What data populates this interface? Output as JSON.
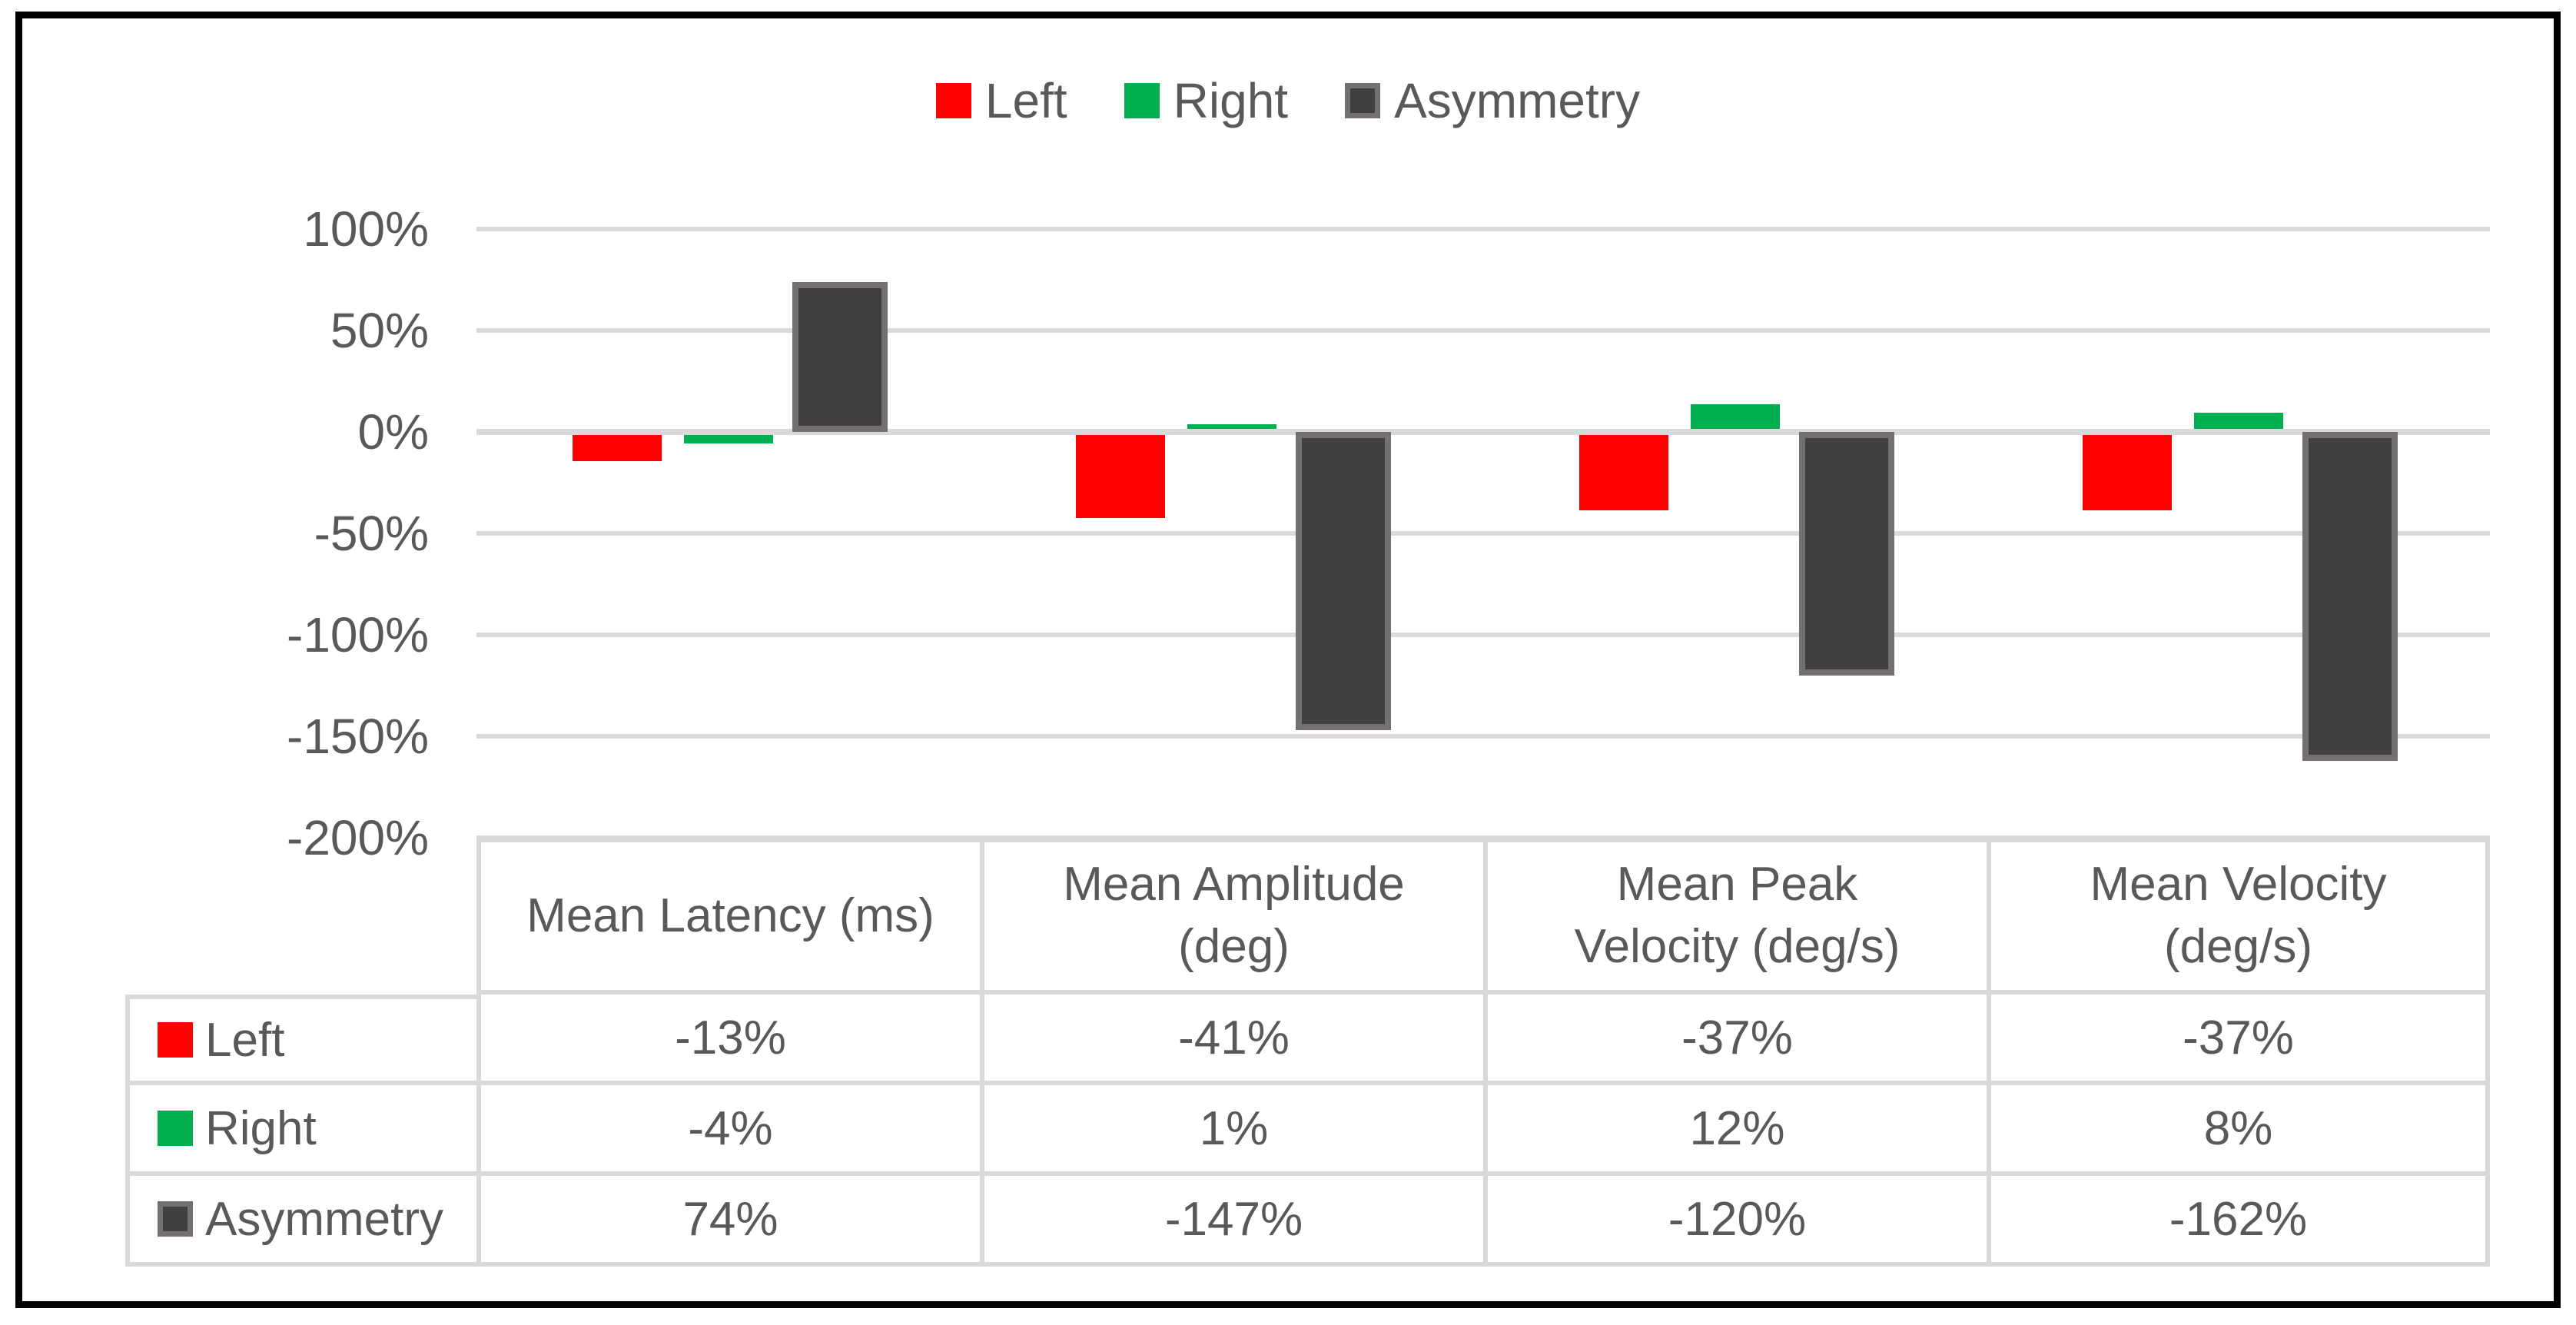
{
  "chart_data": {
    "type": "bar",
    "title": "",
    "categories": [
      "Mean Latency (ms)",
      "Mean Amplitude\n(deg)",
      "Mean Peak\nVelocity (deg/s)",
      "Mean Velocity\n(deg/s)"
    ],
    "series": [
      {
        "name": "Left",
        "color": "#FF0000",
        "values": [
          -13,
          -41,
          -37,
          -37
        ],
        "labels": [
          "-13%",
          "-41%",
          "-37%",
          "-37%"
        ]
      },
      {
        "name": "Right",
        "color": "#00B050",
        "values": [
          -4,
          1,
          12,
          8
        ],
        "labels": [
          "-4%",
          "1%",
          "12%",
          "8%"
        ]
      },
      {
        "name": "Asymmetry",
        "color": "#404040",
        "border_color": "#757070",
        "values": [
          74,
          -147,
          -120,
          -162
        ],
        "labels": [
          "74%",
          "-147%",
          "-120%",
          "-162%"
        ]
      }
    ],
    "y_axis": {
      "tick_labels": [
        "100%",
        "50%",
        "0%",
        "-50%",
        "-100%",
        "-150%",
        "-200%"
      ],
      "tick_values": [
        100,
        50,
        0,
        -50,
        -100,
        -150,
        -200
      ],
      "min": -200,
      "max": 100,
      "step": 50,
      "unit": "%"
    },
    "legend_position": "top",
    "grid": true,
    "data_table_shown": true
  },
  "colors": {
    "gridline": "#D9D9D9",
    "zero_line": "#D9D9D9",
    "table_border": "#D9D9D9",
    "text": "#595959",
    "frame_border": "#000000",
    "background": "#FFFFFF"
  }
}
